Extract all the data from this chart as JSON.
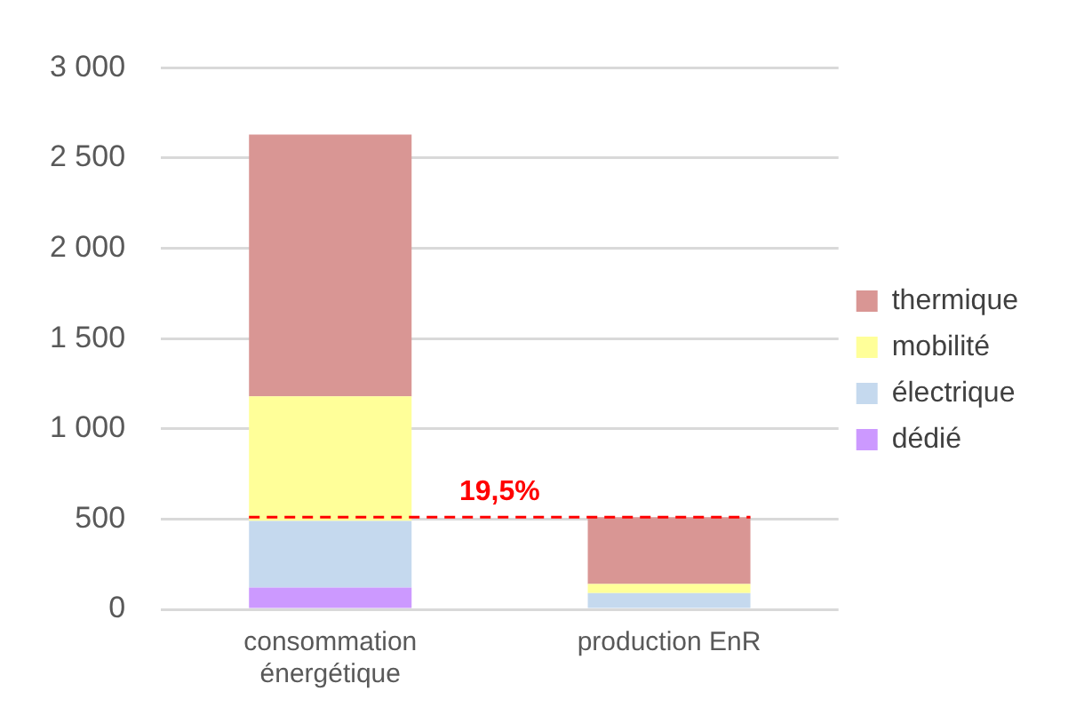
{
  "chart_data": {
    "type": "bar",
    "stacked": true,
    "categories": [
      "consommation énergétique",
      "production EnR"
    ],
    "series": [
      {
        "name": "dédié",
        "color": "#cc99ff",
        "values": [
          120,
          0
        ]
      },
      {
        "name": "électrique",
        "color": "#c5d9ee",
        "values": [
          370,
          90
        ]
      },
      {
        "name": "mobilité",
        "color": "#ffff99",
        "values": [
          690,
          50
        ]
      },
      {
        "name": "thermique",
        "color": "#d99694",
        "values": [
          1450,
          370
        ]
      }
    ],
    "ylim": [
      0,
      3000
    ],
    "yticks": [
      0,
      500,
      {
        "value": 1000,
        "label": "1 000"
      },
      {
        "value": 1500,
        "label": "1 500"
      },
      {
        "value": 2000,
        "label": "2 000"
      },
      {
        "value": 2500,
        "label": "2 500"
      },
      {
        "value": 3000,
        "label": "3 000"
      }
    ],
    "grid": "y",
    "legend": "right",
    "ref_lines": [
      {
        "axis": "y",
        "value": 510,
        "color": "#ff0000",
        "line_style": "dashed"
      }
    ],
    "annotations": [
      "19,5%"
    ]
  }
}
